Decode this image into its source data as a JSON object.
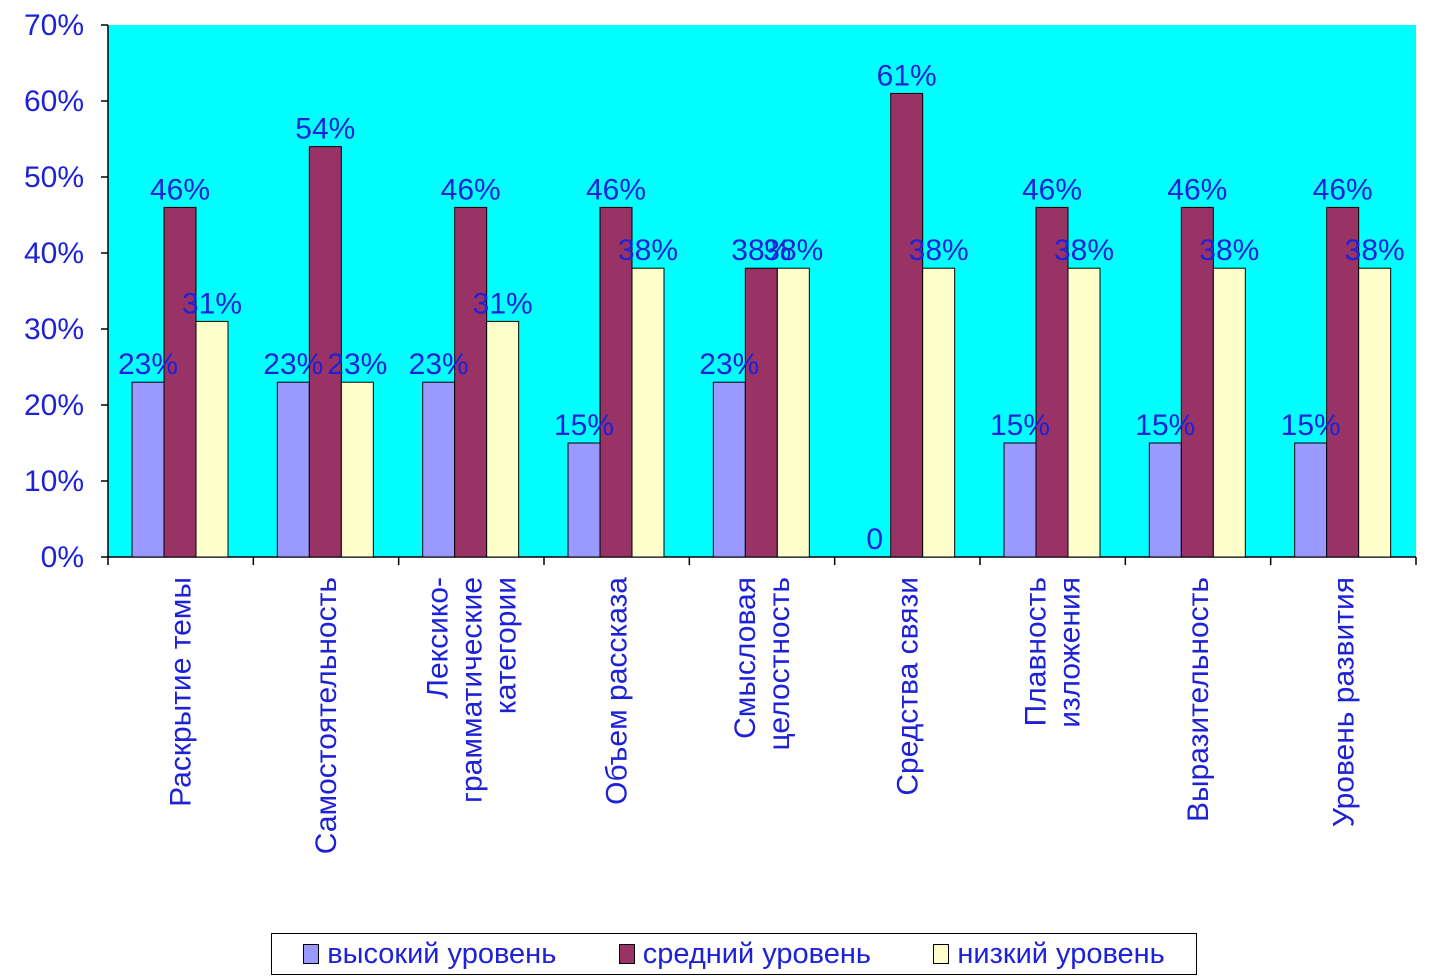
{
  "chart_data": {
    "type": "bar",
    "title": "",
    "xlabel": "",
    "ylabel": "",
    "categories": [
      [
        "Раскрытие темы"
      ],
      [
        "Самостоятельность"
      ],
      [
        "Лексико-",
        "грамматические",
        "категории"
      ],
      [
        "Объем рассказа"
      ],
      [
        "Смысловая",
        "целостность"
      ],
      [
        "Средства связи"
      ],
      [
        "Плавность",
        "изложения"
      ],
      [
        "Выразительность"
      ],
      [
        "Уровень развития"
      ]
    ],
    "series": [
      {
        "name": "высокий уровень",
        "color": "#9999ff",
        "values": [
          23,
          23,
          23,
          15,
          23,
          0,
          15,
          15,
          15
        ],
        "labels": [
          "23%",
          "23%",
          "23%",
          "15%",
          "23%",
          "0",
          "15%",
          "15%",
          "15%"
        ]
      },
      {
        "name": "средний уровень",
        "color": "#993366",
        "values": [
          46,
          54,
          46,
          46,
          38,
          61,
          46,
          46,
          46
        ],
        "labels": [
          "46%",
          "54%",
          "46%",
          "46%",
          "38%",
          "61%",
          "46%",
          "46%",
          "46%"
        ]
      },
      {
        "name": "низкий уровень",
        "color": "#ffffcc",
        "values": [
          31,
          23,
          31,
          38,
          38,
          38,
          38,
          38,
          38
        ],
        "labels": [
          "31%",
          "23%",
          "31%",
          "38%",
          "38%",
          "38%",
          "38%",
          "38%",
          "38%"
        ]
      }
    ],
    "ylim": [
      0,
      70
    ],
    "yticks": [
      "0%",
      "10%",
      "20%",
      "30%",
      "40%",
      "50%",
      "60%",
      "70%"
    ],
    "plot_background": "#00ffff",
    "legend_position": "bottom",
    "grid": false
  }
}
